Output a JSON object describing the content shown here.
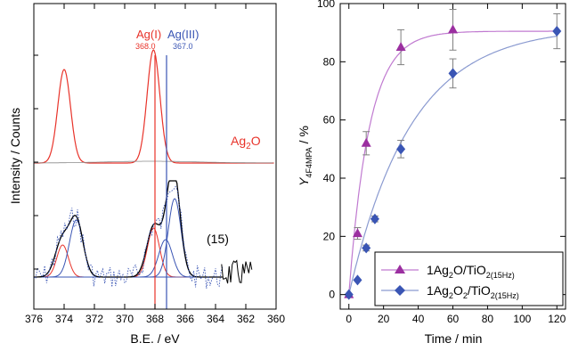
{
  "chart_data": [
    {
      "type": "line",
      "xlabel": "B.E. / eV",
      "ylabel": "Intensity / Counts",
      "xlim": [
        376,
        360
      ],
      "x_reversed": true,
      "x_ticks": [
        376,
        374,
        372,
        370,
        368,
        366,
        364,
        362,
        360
      ],
      "y_ticks": [],
      "grid": false,
      "annotations": [
        {
          "text": "Ag(I)",
          "value": "368.0",
          "x": 368.0,
          "color": "#e8332a"
        },
        {
          "text": "Ag(III)",
          "value": "367.0",
          "x": 367.0,
          "color": "#3a55b4"
        },
        {
          "text_main": "Ag",
          "text_sub": "2",
          "text_tail": "O",
          "color": "#e8332a"
        },
        {
          "text": "(15)",
          "color": "#000000"
        }
      ],
      "series": [
        {
          "color": "#e8332a",
          "peaks": [
            {
              "x": 374.0,
              "rel_height": 0.83
            },
            {
              "x": 368.1,
              "rel_height": 1.0
            }
          ]
        },
        {
          "color": "#000000",
          "peaks": [
            {
              "x": 374.1
            },
            {
              "x": 373.2
            },
            {
              "x": 368.1
            },
            {
              "x": 367.3
            },
            {
              "x": 366.7
            }
          ]
        },
        {
          "color": "#e8332a",
          "peaks": [
            {
              "x": 374.2
            },
            {
              "x": 368.1
            }
          ]
        },
        {
          "color": "#3a55b4",
          "peaks": [
            {
              "x": 373.2
            },
            {
              "x": 367.2
            },
            {
              "x": 366.7
            }
          ]
        }
      ]
    },
    {
      "type": "scatter",
      "xlabel": "Time / min",
      "ylabel_main": "Y",
      "ylabel_sub": "4F4MPA",
      "ylabel_tail": " / %",
      "xlim": [
        -5,
        125
      ],
      "ylim": [
        -5,
        100
      ],
      "x_ticks": [
        0,
        20,
        40,
        60,
        80,
        100,
        120
      ],
      "y_ticks": [
        0,
        20,
        40,
        60,
        80,
        100
      ],
      "grid": false,
      "legend_position": "bottom-right",
      "series": [
        {
          "legend_main": "1Ag",
          "legend_sub1": "2",
          "legend_mid": "O/TiO",
          "legend_sub2": "2(15Hz)",
          "marker": "triangle",
          "color": "#9b2fa0",
          "line_color": "#c07ad0",
          "x": [
            0,
            5,
            10,
            30,
            60
          ],
          "y": [
            0,
            21,
            52,
            85,
            91
          ],
          "error": [
            0,
            2,
            4,
            6,
            7
          ],
          "fit": {
            "plateau": 90.5,
            "rate": 0.085
          }
        },
        {
          "legend_main": "1Ag",
          "legend_sub1": "2",
          "legend_mid": "O",
          "legend_sub2b": "2",
          "legend_mid2": "/TiO",
          "legend_sub2": "2(15Hz)",
          "marker": "diamond",
          "color": "#3a55b4",
          "line_color": "#8a9ad0",
          "x": [
            0,
            5,
            10,
            15,
            30,
            60,
            120
          ],
          "y": [
            0,
            5,
            16,
            26,
            50,
            76,
            90.5
          ],
          "error": [
            0,
            0,
            1,
            1,
            3,
            5,
            6
          ],
          "fit": {
            "plateau": 92,
            "rate": 0.028
          }
        }
      ]
    }
  ]
}
